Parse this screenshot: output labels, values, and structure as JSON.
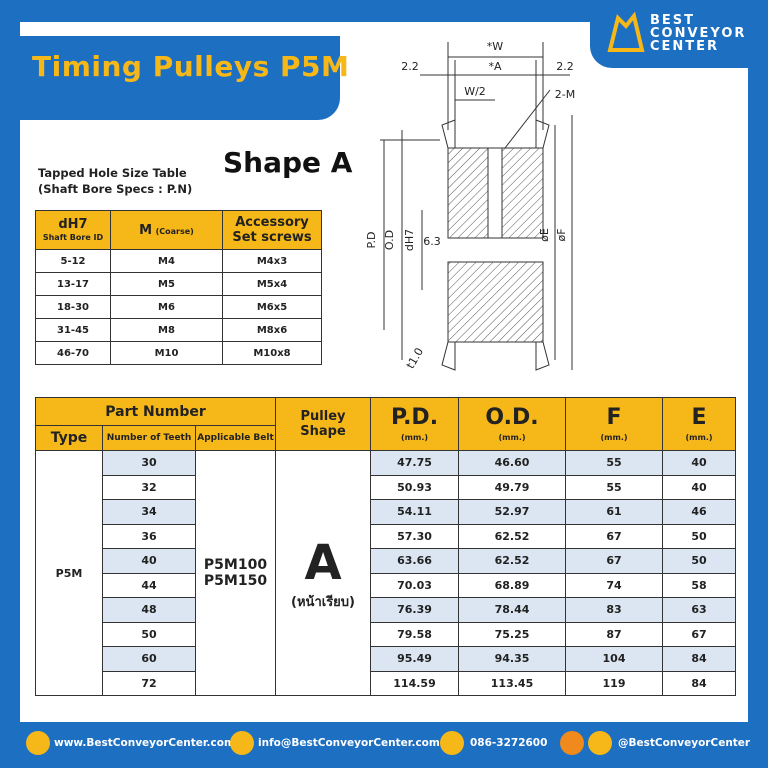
{
  "header": {
    "title": "Timing Pulleys P5M",
    "logo": [
      "BEST",
      "CONVEYOR",
      "CENTER"
    ]
  },
  "shape_title": "Shape A",
  "hole_table": {
    "caption": [
      "Tapped Hole Size Table",
      "(Shaft Bore Specs : P.N)"
    ],
    "headers": [
      {
        "main": "dH7",
        "sub": "Shaft Bore ID"
      },
      {
        "main": "M",
        "sub": "(Coarse)"
      },
      {
        "main": "Accessory",
        "sub": "Set screws"
      }
    ],
    "rows": [
      [
        "5-12",
        "M4",
        "M4x3"
      ],
      [
        "13-17",
        "M5",
        "M5x4"
      ],
      [
        "18-30",
        "M6",
        "M6x5"
      ],
      [
        "31-45",
        "M8",
        "M8x6"
      ],
      [
        "46-70",
        "M10",
        "M10x8"
      ]
    ]
  },
  "drawing": {
    "labels": [
      "*W",
      "*A",
      "2.2",
      "2.2",
      "W/2",
      "2-M",
      "P.D",
      "O.D",
      "dH7",
      "6.3",
      "øE",
      "øF",
      "t1.0"
    ]
  },
  "main_table": {
    "group_header": "Part Number",
    "headers": [
      "Type",
      "Number of Teeth",
      "Applicable Belt",
      "Pulley Shape"
    ],
    "dim_headers": [
      {
        "main": "P.D.",
        "unit": "(mm.)"
      },
      {
        "main": "O.D.",
        "unit": "(mm.)"
      },
      {
        "main": "F",
        "unit": "(mm.)"
      },
      {
        "main": "E",
        "unit": "(mm.)"
      }
    ],
    "type": "P5M",
    "belts": [
      "P5M100",
      "P5M150"
    ],
    "shape": [
      "A",
      "(หน้าเรียบ)"
    ],
    "rows": [
      [
        "30",
        "47.75",
        "46.60",
        "55",
        "40"
      ],
      [
        "32",
        "50.93",
        "49.79",
        "55",
        "40"
      ],
      [
        "34",
        "54.11",
        "52.97",
        "61",
        "46"
      ],
      [
        "36",
        "57.30",
        "62.52",
        "67",
        "50"
      ],
      [
        "40",
        "63.66",
        "62.52",
        "67",
        "50"
      ],
      [
        "44",
        "70.03",
        "68.89",
        "74",
        "58"
      ],
      [
        "48",
        "76.39",
        "78.44",
        "83",
        "63"
      ],
      [
        "50",
        "79.58",
        "75.25",
        "87",
        "67"
      ],
      [
        "60",
        "95.49",
        "94.35",
        "104",
        "84"
      ],
      [
        "72",
        "114.59",
        "113.45",
        "119",
        "84"
      ]
    ]
  },
  "footer": [
    "www.BestConveyorCenter.com",
    "info@BestConveyorCenter.com",
    "086-3272600",
    "@BestConveyorCenter"
  ]
}
